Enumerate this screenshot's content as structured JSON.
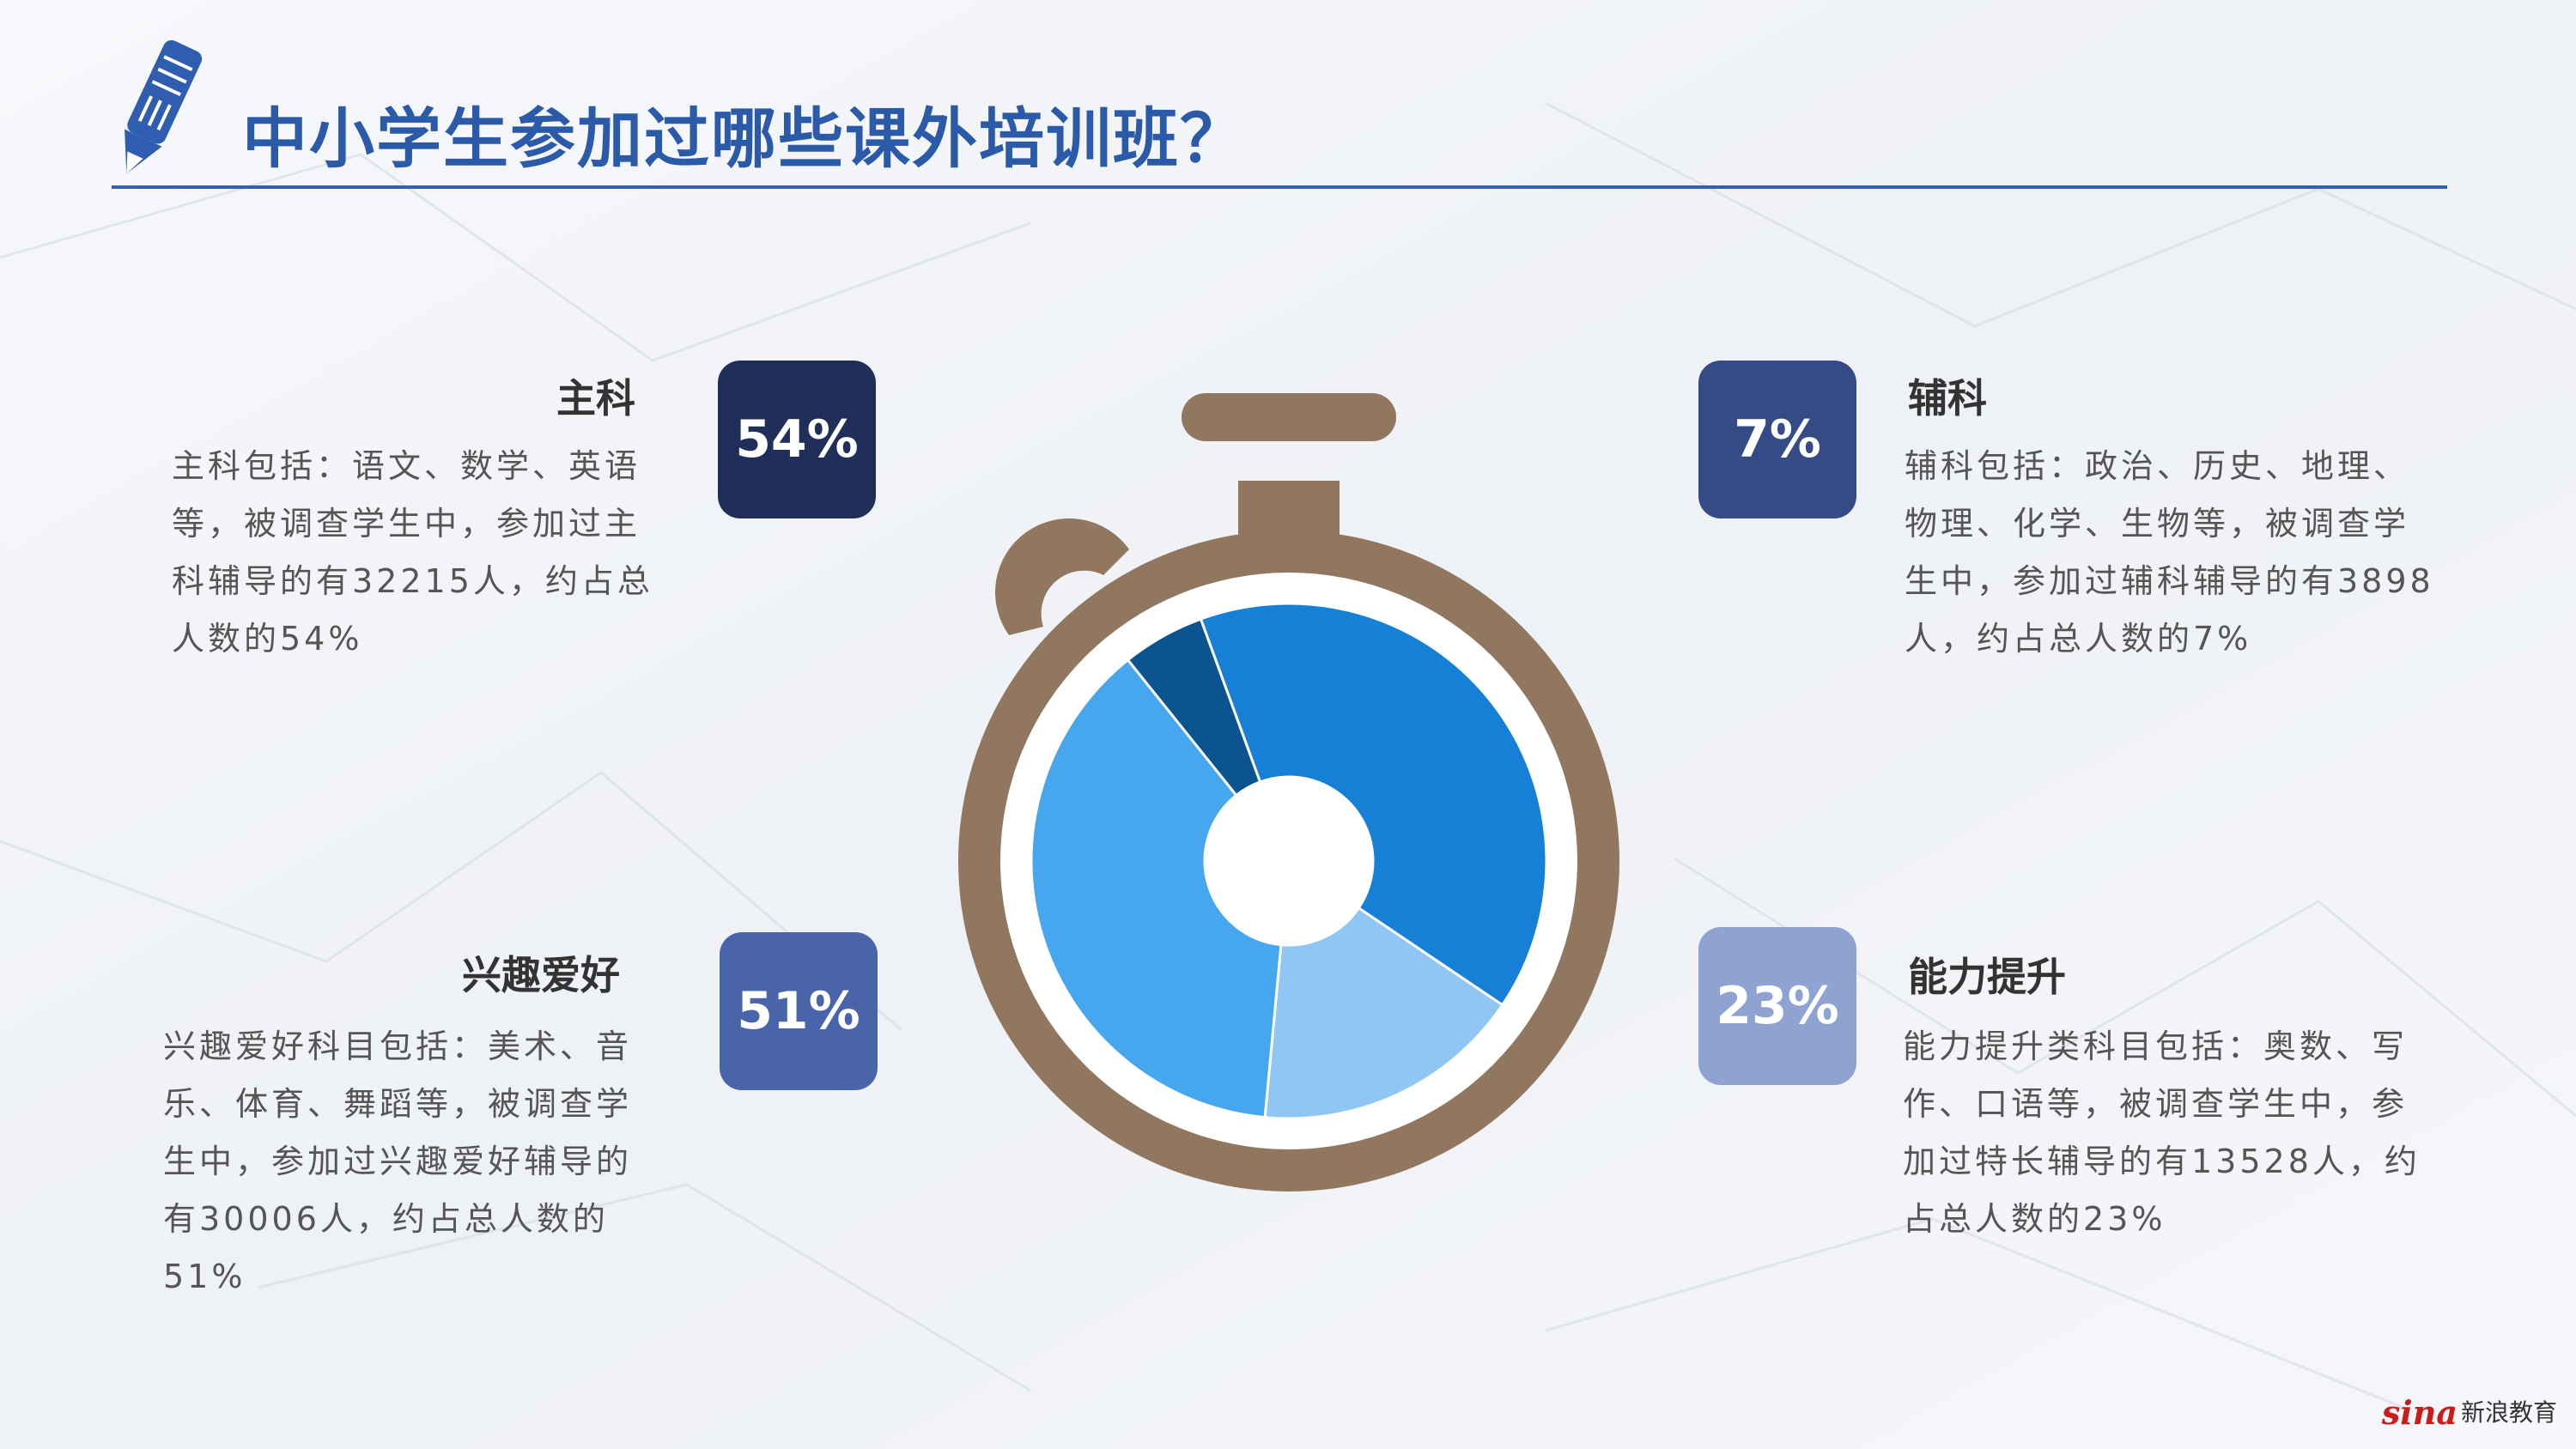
{
  "page": {
    "title": "中小学生参加过哪些课外培训班？"
  },
  "cards": {
    "main": {
      "heading": "主科",
      "badge": "54%",
      "desc": "主科包括：语文、数学、英语等，被调查学生中，参加过主科辅导的有32215人，约占总人数的54%",
      "color": "#1f2f5a"
    },
    "minor": {
      "heading": "辅科",
      "badge": "7%",
      "desc": "辅科包括：政治、历史、地理、物理、化学、生物等，被调查学生中，参加过辅科辅导的有3898人，约占总人数的7%",
      "color": "#354b85"
    },
    "hobby": {
      "heading": "兴趣爱好",
      "badge": "51%",
      "desc": "兴趣爱好科目包括：美术、音乐、体育、舞蹈等，被调查学生中，参加过兴趣爱好辅导的有30006人，约占总人数的51%",
      "color": "#4a64aa"
    },
    "ability": {
      "heading": "能力提升",
      "badge": "23%",
      "desc": "能力提升类科目包括：奥数、写作、口语等，被调查学生中，参加过特长辅导的有13528人，约占总人数的23%",
      "color": "#8ea3d2"
    }
  },
  "chart_data": {
    "type": "pie",
    "style": "donut inside stopwatch",
    "categories": [
      "主科",
      "兴趣爱好",
      "能力提升",
      "辅科"
    ],
    "values": [
      54,
      51,
      23,
      7
    ],
    "colors": [
      "#1580d6",
      "#46a7ee",
      "#90c6f4",
      "#0c5490"
    ],
    "frame_color": "#917760"
  },
  "brand": {
    "logo": "sina",
    "name": "新浪教育"
  }
}
